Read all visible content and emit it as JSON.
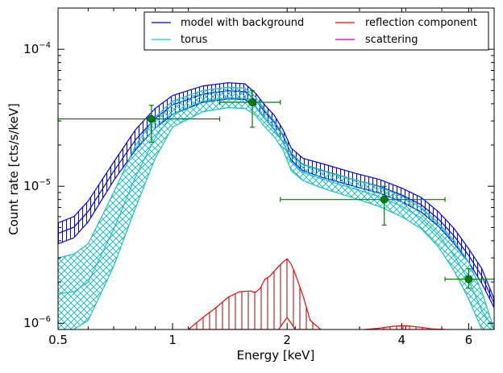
{
  "chart_data": {
    "type": "line",
    "xlabel": "Energy [keV]",
    "ylabel": "Count rate [cts/s/keV]",
    "xscale": "log",
    "yscale": "log",
    "xlim": [
      0.5,
      7.0
    ],
    "ylim": [
      9e-07,
      0.0002
    ],
    "grid": false,
    "legend_placement": "top-right",
    "x_tick_labels": [
      {
        "value": 0.5,
        "label": "0.5"
      },
      {
        "value": 1,
        "label": "1"
      },
      {
        "value": 2,
        "label": "2"
      },
      {
        "value": 4,
        "label": "4"
      },
      {
        "value": 6,
        "label": "6"
      }
    ],
    "y_tick_labels": [
      {
        "value": 1e-06,
        "base": "10",
        "exp": "−6"
      },
      {
        "value": 1e-05,
        "base": "10",
        "exp": "−5"
      },
      {
        "value": 0.0001,
        "base": "10",
        "exp": "−4"
      }
    ],
    "series": [
      {
        "name": "model with background",
        "color": "#0000ff",
        "style": "band-hatch-vertical",
        "x": [
          0.5,
          0.55,
          0.6,
          0.7,
          0.8,
          0.9,
          1.0,
          1.2,
          1.4,
          1.55,
          1.65,
          1.75,
          1.85,
          1.95,
          2.05,
          2.2,
          2.5,
          3.0,
          3.5,
          4.0,
          4.5,
          5.0,
          5.5,
          6.0,
          6.5,
          7.0
        ],
        "upper": [
          5.4e-06,
          6e-06,
          7.8e-06,
          1.5e-05,
          2.6e-05,
          3.7e-05,
          4.6e-05,
          5.4e-05,
          5.7e-05,
          5.6e-05,
          4.8e-05,
          3.9e-05,
          3.3e-05,
          2.6e-05,
          1.9e-05,
          1.6e-05,
          1.45e-05,
          1.25e-05,
          1.12e-05,
          9.7e-06,
          8.3e-06,
          6.5e-06,
          4.9e-06,
          3.5e-06,
          2.5e-06,
          1.5e-06
        ],
        "lower": [
          3.8e-06,
          4.2e-06,
          5.5e-06,
          1.1e-05,
          1.85e-05,
          2.65e-05,
          3.35e-05,
          4.1e-05,
          4.35e-05,
          4.3e-05,
          3.8e-05,
          3.1e-05,
          2.6e-05,
          2.1e-05,
          1.55e-05,
          1.3e-05,
          1.15e-05,
          1e-05,
          8.9e-06,
          7.7e-06,
          6.5e-06,
          5.1e-06,
          3.8e-06,
          2.8e-06,
          1.95e-06,
          1.3e-06
        ]
      },
      {
        "name": "torus",
        "color": "#1fbfbf",
        "style": "band-hatch-cross",
        "x": [
          0.5,
          0.55,
          0.6,
          0.7,
          0.8,
          0.9,
          1.0,
          1.2,
          1.4,
          1.55,
          1.65,
          1.75,
          1.85,
          1.95,
          2.05,
          2.2,
          2.5,
          3.0,
          3.5,
          4.0,
          4.5,
          5.0,
          5.5,
          6.0,
          6.5,
          7.0
        ],
        "upper": [
          3e-06,
          3.2e-06,
          3.8e-06,
          9e-06,
          2e-05,
          3.2e-05,
          4.2e-05,
          5e-05,
          5.3e-05,
          5.2e-05,
          4.5e-05,
          3.6e-05,
          3e-05,
          2.4e-05,
          1.75e-05,
          1.45e-05,
          1.3e-05,
          1.12e-05,
          9.9e-06,
          8.5e-06,
          7e-06,
          5.4e-06,
          4e-06,
          2.8e-06,
          1.7e-06,
          9e-07
        ],
        "lower": [
          9e-07,
          9e-07,
          1.05e-06,
          2.6e-06,
          7e-06,
          1.6e-05,
          2.7e-05,
          3.5e-05,
          3.75e-05,
          3.7e-05,
          3.3e-05,
          2.7e-05,
          2.3e-05,
          1.85e-05,
          1.3e-05,
          1.1e-05,
          9.6e-06,
          8.2e-06,
          7.1e-06,
          6e-06,
          4.9e-06,
          3.6e-06,
          2.4e-06,
          1.5e-06,
          9e-07,
          9e-07
        ]
      },
      {
        "name": "reflection component",
        "color": "#ff0000",
        "style": "band-hatch-vertical",
        "segments": [
          {
            "x": [
              1.1,
              1.2,
              1.3,
              1.4,
              1.5,
              1.6,
              1.65,
              1.7,
              1.75,
              1.8,
              1.85,
              1.9,
              1.95,
              2.0,
              2.05,
              2.1,
              2.2,
              2.3,
              2.45
            ],
            "upper": [
              9e-07,
              1.1e-06,
              1.3e-06,
              1.55e-06,
              1.7e-06,
              1.72e-06,
              1.68e-06,
              1.8e-06,
              2.1e-06,
              2.2e-06,
              2.4e-06,
              2.6e-06,
              2.8e-06,
              2.95e-06,
              2.7e-06,
              2.3e-06,
              1.6e-06,
              1.05e-06,
              9e-07
            ],
            "lower": [
              9e-07,
              9e-07,
              9e-07,
              9e-07,
              9e-07,
              9e-07,
              9e-07,
              9e-07,
              9e-07,
              9e-07,
              9e-07,
              9e-07,
              1e-06,
              1.1e-06,
              1e-06,
              9e-07,
              9e-07,
              9e-07,
              9e-07
            ]
          },
          {
            "x": [
              3.2,
              3.5,
              3.8,
              4.1,
              4.4,
              4.8,
              5.2
            ],
            "upper": [
              9e-07,
              9.2e-07,
              9.5e-07,
              9.6e-07,
              9.4e-07,
              9.1e-07,
              9e-07
            ],
            "lower": [
              9e-07,
              9e-07,
              9e-07,
              9e-07,
              9e-07,
              9e-07,
              9e-07
            ]
          }
        ]
      },
      {
        "name": "scattering",
        "color": "#bf00bf",
        "style": "band-hatch-vertical",
        "segments": []
      }
    ],
    "data_points": {
      "color": "#007f00",
      "points": [
        {
          "x": 0.88,
          "y": 3.1e-05,
          "xerr": [
            0.5,
            1.33
          ],
          "yerr": [
            2.1e-05,
            3.9e-05
          ]
        },
        {
          "x": 1.62,
          "y": 4.1e-05,
          "xerr": [
            1.33,
            1.92
          ],
          "yerr": [
            2.7e-05,
            5e-05
          ]
        },
        {
          "x": 3.6,
          "y": 8e-06,
          "xerr": [
            1.92,
            5.2
          ],
          "yerr": [
            5.2e-06,
            1e-05
          ]
        },
        {
          "x": 6.0,
          "y": 2.1e-06,
          "xerr": [
            5.2,
            7.0
          ],
          "yerr": [
            1.8e-06,
            2.5e-06
          ]
        }
      ]
    }
  }
}
